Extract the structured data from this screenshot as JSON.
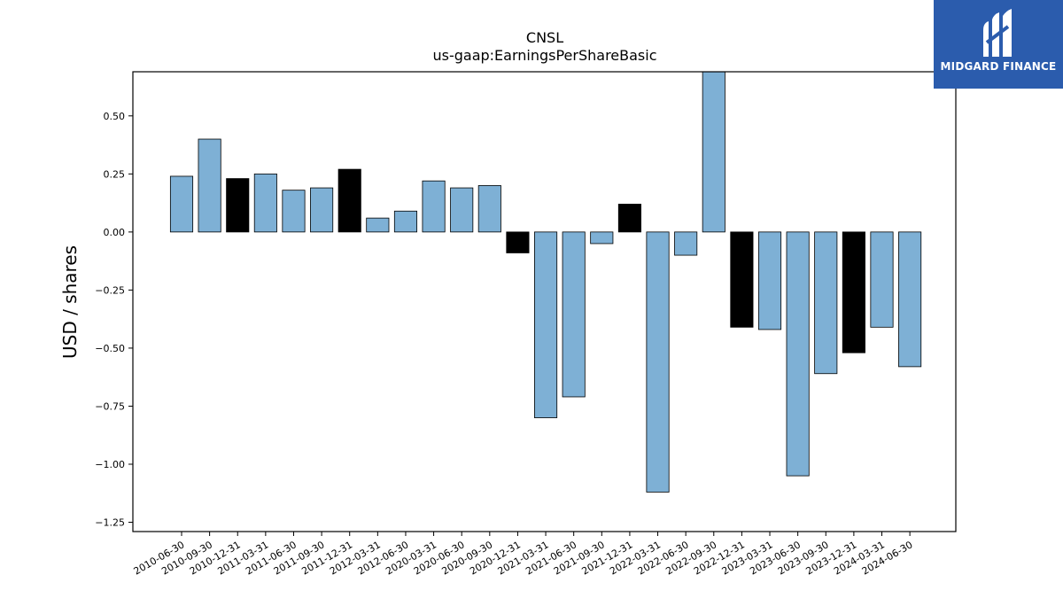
{
  "chart_data": {
    "type": "bar",
    "title": "CNSL",
    "subtitle": "us-gaap:EarningsPerShareBasic",
    "ylabel": "USD / shares",
    "xlabel": "",
    "ylim": [
      -1.29,
      0.69
    ],
    "yticks": [
      0.5,
      0.25,
      0.0,
      -0.25,
      -0.5,
      -0.75,
      -1.0,
      -1.25
    ],
    "ytick_labels": [
      "0.50",
      "0.25",
      "0.00",
      "−0.25",
      "−0.50",
      "−0.75",
      "−1.00",
      "−1.25"
    ],
    "categories": [
      "2010-06-30",
      "2010-09-30",
      "2010-12-31",
      "2011-03-31",
      "2011-06-30",
      "2011-09-30",
      "2011-12-31",
      "2012-03-31",
      "2012-06-30",
      "2020-03-31",
      "2020-06-30",
      "2020-09-30",
      "2020-12-31",
      "2021-03-31",
      "2021-06-30",
      "2021-09-30",
      "2021-12-31",
      "2022-03-31",
      "2022-06-30",
      "2022-09-30",
      "2022-12-31",
      "2023-03-31",
      "2023-06-30",
      "2023-09-30",
      "2023-12-31",
      "2024-03-31",
      "2024-06-30"
    ],
    "values": [
      0.24,
      0.4,
      0.23,
      0.25,
      0.18,
      0.19,
      0.27,
      0.06,
      0.09,
      0.22,
      0.19,
      0.2,
      -0.09,
      -0.8,
      -0.71,
      -0.05,
      0.12,
      -1.12,
      -0.1,
      0.69,
      -0.41,
      -0.42,
      -1.05,
      -0.61,
      -0.52,
      -0.41,
      -0.58
    ],
    "highlight": [
      false,
      false,
      true,
      false,
      false,
      false,
      true,
      false,
      false,
      false,
      false,
      false,
      true,
      false,
      false,
      false,
      true,
      false,
      false,
      false,
      true,
      false,
      false,
      false,
      true,
      false,
      false
    ],
    "colors": {
      "bar": "#7eb0d5",
      "highlight": "#000000",
      "edge": "#000000"
    },
    "grid": false,
    "legend": "none"
  },
  "logo": {
    "text": "MIDGARD FINANCE",
    "background": "#2b5cad"
  }
}
